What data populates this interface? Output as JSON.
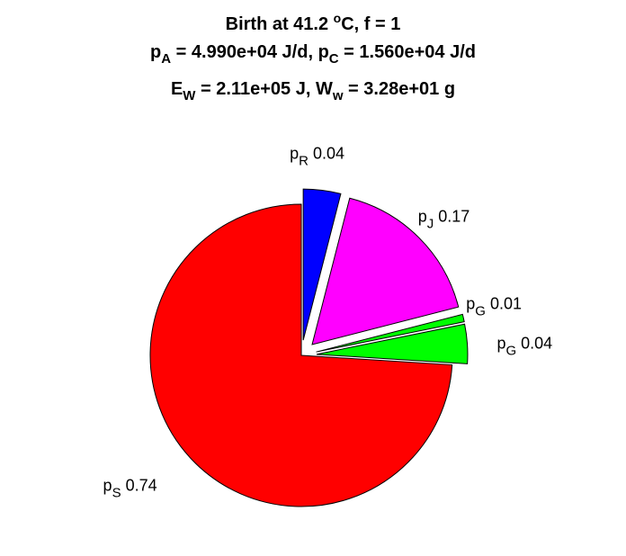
{
  "chart_data": {
    "type": "pie",
    "title": {
      "line1": {
        "text": "Birth at 41.2 ",
        "sup": "o",
        "tail": "C, f = 1"
      },
      "line2": {
        "a_sym": "p",
        "a_sub": "A",
        "a_val": " = 4.990e+04 J/d, ",
        "c_sym": "p",
        "c_sub": "C",
        "c_val": " = 1.560e+04 J/d"
      },
      "line3": {
        "e_sym": "E",
        "e_sub": "W",
        "e_val": " = 2.11e+05 J, ",
        "w_sym": "W",
        "w_sub": "w",
        "w_val": " = 3.28e+01 g"
      }
    },
    "slices": [
      {
        "sym": "p",
        "sub": "R",
        "value_label": " 0.04",
        "value": 0.04,
        "color": "#0000ff"
      },
      {
        "sym": "p",
        "sub": "J",
        "value_label": " 0.17",
        "value": 0.17,
        "color": "#ff00ff"
      },
      {
        "sym": "p",
        "sub": "G",
        "value_label": " 0.01",
        "value": 0.008,
        "color": "#00ff00"
      },
      {
        "sym": "p",
        "sub": "G",
        "value_label": " 0.04",
        "value": 0.042,
        "color": "#00ff00"
      },
      {
        "sym": "p",
        "sub": "S",
        "value_label": " 0.74",
        "value": 0.74,
        "color": "#ff0000"
      }
    ],
    "exploded": [
      true,
      true,
      true,
      true,
      false
    ]
  }
}
